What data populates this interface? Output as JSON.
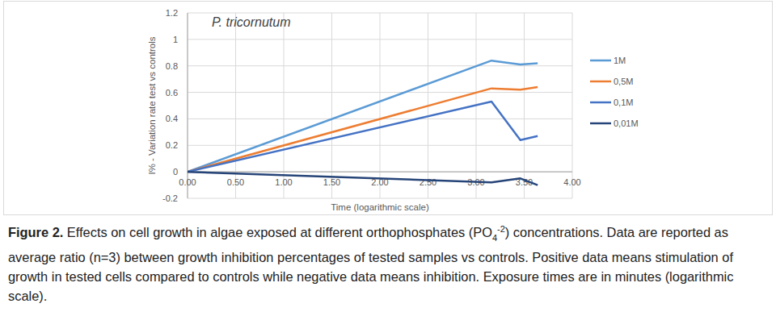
{
  "chart_data": {
    "type": "line",
    "title": "P. tricornutum",
    "x_label": "Time (logarithmic scale)",
    "y_label": "I% - Variation rate test vs controls",
    "x": [
      0,
      3.16,
      3.46,
      3.64
    ],
    "series": [
      {
        "name": "1M",
        "color": "#5b9bd5",
        "values": [
          0,
          0.84,
          0.81,
          0.82
        ]
      },
      {
        "name": "0,5M",
        "color": "#ed7d31",
        "values": [
          0,
          0.63,
          0.62,
          0.64
        ]
      },
      {
        "name": "0,1M",
        "color": "#4472c4",
        "values": [
          0,
          0.53,
          0.24,
          0.27
        ]
      },
      {
        "name": "0,01M",
        "color": "#264478",
        "values": [
          0,
          -0.08,
          -0.05,
          -0.1
        ]
      }
    ],
    "xlim": [
      0,
      4
    ],
    "ylim": [
      -0.2,
      1.2
    ],
    "xticks": [
      {
        "value": 0,
        "label": "0.00"
      },
      {
        "value": 0.5,
        "label": "0.50"
      },
      {
        "value": 1,
        "label": "1.00"
      },
      {
        "value": 1.5,
        "label": "1.50"
      },
      {
        "value": 2,
        "label": "2.00"
      },
      {
        "value": 2.5,
        "label": "2.50"
      },
      {
        "value": 3,
        "label": "3.00"
      },
      {
        "value": 3.5,
        "label": "3.50"
      },
      {
        "value": 4,
        "label": "4.00"
      }
    ],
    "yticks": [
      -0.2,
      0,
      0.2,
      0.4,
      0.6,
      0.8,
      1,
      1.2
    ],
    "grid": true,
    "legend": "right",
    "caption_lead": "Figure 2.",
    "caption": [
      " Effects on cell growth in algae exposed at different orthophosphates (PO",
      "4",
      "-2",
      ") concentrations. Data are reported as average ratio (n=3) between growth inhibition percentages of tested samples vs controls. Positive data means stimulation of growth in tested cells compared to controls while negative data means inhibition. Exposure times are in minutes (logarithmic scale)."
    ]
  }
}
